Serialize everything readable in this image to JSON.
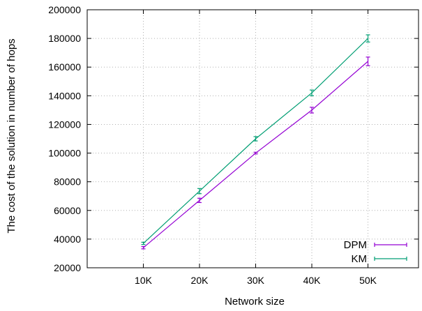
{
  "chart_data": {
    "type": "line",
    "xlabel": "Network size",
    "ylabel": "The cost of the solution in number of hops",
    "categories": [
      "10K",
      "20K",
      "30K",
      "40K",
      "50K"
    ],
    "x": [
      10,
      20,
      30,
      40,
      50
    ],
    "xlim": [
      0,
      59
    ],
    "ylim": [
      20000,
      200000
    ],
    "yticks": [
      20000,
      40000,
      60000,
      80000,
      100000,
      120000,
      140000,
      160000,
      180000,
      200000
    ],
    "grid": true,
    "legend_position": "bottom-right",
    "series": [
      {
        "name": "DPM",
        "color": "#9400d3",
        "values": [
          34000,
          67000,
          100000,
          130000,
          164000
        ],
        "err": [
          800,
          1500,
          600,
          2000,
          3000
        ]
      },
      {
        "name": "KM",
        "color": "#009e73",
        "values": [
          37000,
          73500,
          110000,
          142000,
          180000
        ],
        "err": [
          800,
          1800,
          1500,
          2000,
          2500
        ]
      }
    ]
  }
}
